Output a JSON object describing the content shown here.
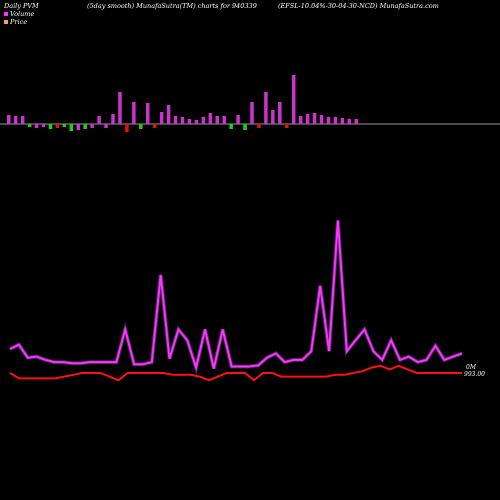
{
  "header": {
    "left": "Daily PVM",
    "middle": "(5day smooth) MunafaSutra(TM) charts for 940339",
    "right": "(EFSL-10.04%-30-04-30-NCD) MunafaSutra.com"
  },
  "legend": [
    {
      "label": "Volume",
      "color": "#ff33ff"
    },
    {
      "label": "Price",
      "color": "#ff9966"
    }
  ],
  "chart_data": [
    {
      "type": "bar",
      "name": "pvm-bars",
      "note_colors": {
        "up": "#cc33cc",
        "down_red": "#dd1111",
        "down_green": "#22cc22"
      },
      "values": [
        9,
        8,
        8,
        -3,
        -4,
        -3,
        -5,
        -4,
        -3,
        -7,
        -6,
        -5,
        -4,
        8,
        -4,
        10,
        32,
        -8,
        22,
        -5,
        21,
        -4,
        12,
        19,
        8,
        7,
        5,
        4,
        7,
        11,
        8,
        8,
        -5,
        9,
        -6,
        22,
        -4,
        32,
        14,
        22,
        -4,
        49,
        8,
        10,
        11,
        9,
        7,
        7,
        6,
        5,
        5
      ],
      "colors": [
        "m",
        "m",
        "m",
        "g",
        "m",
        "m",
        "g",
        "r",
        "g",
        "g",
        "m",
        "g",
        "m",
        "m",
        "m",
        "m",
        "m",
        "r",
        "m",
        "g",
        "m",
        "r",
        "m",
        "m",
        "m",
        "m",
        "m",
        "m",
        "m",
        "m",
        "m",
        "m",
        "g",
        "m",
        "g",
        "m",
        "r",
        "m",
        "m",
        "m",
        "r",
        "m",
        "m",
        "m",
        "m",
        "m",
        "m",
        "m",
        "m",
        "m",
        "m"
      ]
    },
    {
      "type": "line",
      "name": "Volume",
      "color": "#ff33ff",
      "values": [
        0.22,
        0.26,
        0.14,
        0.15,
        0.12,
        0.1,
        0.1,
        0.09,
        0.09,
        0.1,
        0.1,
        0.1,
        0.1,
        0.4,
        0.08,
        0.08,
        0.1,
        0.9,
        0.13,
        0.4,
        0.3,
        0.05,
        0.4,
        0.04,
        0.4,
        0.06,
        0.06,
        0.06,
        0.07,
        0.14,
        0.18,
        0.1,
        0.12,
        0.12,
        0.2,
        0.8,
        0.2,
        1.4,
        0.2,
        0.3,
        0.4,
        0.2,
        0.12,
        0.3,
        0.12,
        0.15,
        0.1,
        0.12,
        0.25,
        0.12,
        0.15,
        0.18
      ]
    },
    {
      "type": "line",
      "name": "Price",
      "color": "#ff1111",
      "values": [
        1,
        0.97,
        0.97,
        0.97,
        0.97,
        0.97,
        0.98,
        0.99,
        1,
        1,
        1,
        0.98,
        0.96,
        1,
        1,
        1,
        1,
        1,
        0.99,
        0.99,
        0.99,
        0.98,
        0.96,
        0.98,
        1,
        1,
        1,
        0.96,
        1,
        1,
        0.98,
        0.98,
        0.98,
        0.98,
        0.98,
        0.98,
        0.99,
        0.99,
        1,
        1.01,
        1.03,
        1.04,
        1.02,
        1.04,
        1.02,
        1,
        1,
        1,
        1,
        1,
        1
      ]
    }
  ],
  "axis": {
    "volume_label": "0M",
    "price_label": "993.00"
  }
}
